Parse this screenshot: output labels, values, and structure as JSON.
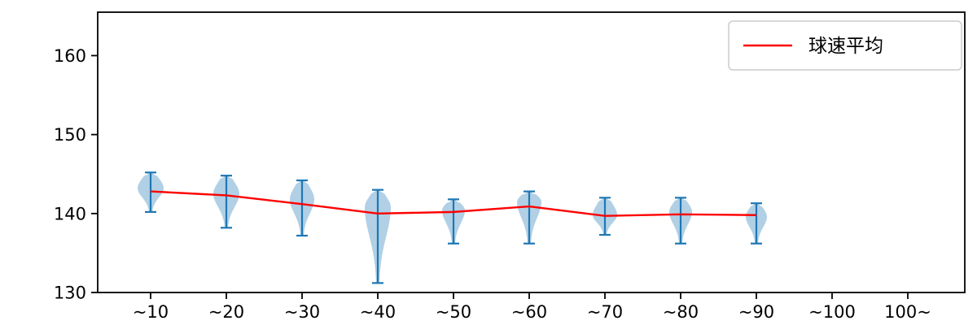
{
  "chart_data": {
    "type": "violin",
    "title": "",
    "xlabel": "",
    "ylabel": "",
    "categories": [
      "~10",
      "~20",
      "~30",
      "~40",
      "~50",
      "~60",
      "~70",
      "~80",
      "~90",
      "~100",
      "100~"
    ],
    "yticks": [
      130,
      140,
      150,
      160
    ],
    "ylim": [
      130,
      165.5
    ],
    "grid": false,
    "legend": {
      "label": "球速平均",
      "position": "upper right",
      "line_color": "#ff0000"
    },
    "colors": {
      "violin_fill": "rgba(31,119,180,0.35)",
      "violin_edge": "#1f77b4",
      "mean_line": "#ff0000",
      "axis": "#000000"
    },
    "violins": [
      {
        "category": "~10",
        "min": 140.2,
        "max": 145.2,
        "mode": 143.2,
        "halfwidth": 16
      },
      {
        "category": "~20",
        "min": 138.2,
        "max": 144.8,
        "mode": 142.5,
        "halfwidth": 16
      },
      {
        "category": "~30",
        "min": 137.2,
        "max": 144.2,
        "mode": 141.8,
        "halfwidth": 15
      },
      {
        "category": "~40",
        "min": 131.2,
        "max": 143.0,
        "mode": 140.8,
        "halfwidth": 16
      },
      {
        "category": "~50",
        "min": 136.2,
        "max": 141.8,
        "mode": 140.4,
        "halfwidth": 14
      },
      {
        "category": "~60",
        "min": 136.2,
        "max": 142.8,
        "mode": 141.5,
        "halfwidth": 15
      },
      {
        "category": "~70",
        "min": 137.3,
        "max": 142.0,
        "mode": 139.8,
        "halfwidth": 15
      },
      {
        "category": "~80",
        "min": 136.2,
        "max": 142.0,
        "mode": 140.2,
        "halfwidth": 14
      },
      {
        "category": "~90",
        "min": 136.2,
        "max": 141.3,
        "mode": 139.6,
        "halfwidth": 13
      },
      {
        "category": "~100",
        "min": null,
        "max": null,
        "mode": null,
        "halfwidth": 0
      },
      {
        "category": "100~",
        "min": null,
        "max": null,
        "mode": null,
        "halfwidth": 0
      }
    ],
    "series": [
      {
        "name": "球速平均",
        "values": [
          142.8,
          142.3,
          141.2,
          140.0,
          140.2,
          140.9,
          139.7,
          139.9,
          139.8,
          null,
          null
        ]
      }
    ]
  }
}
